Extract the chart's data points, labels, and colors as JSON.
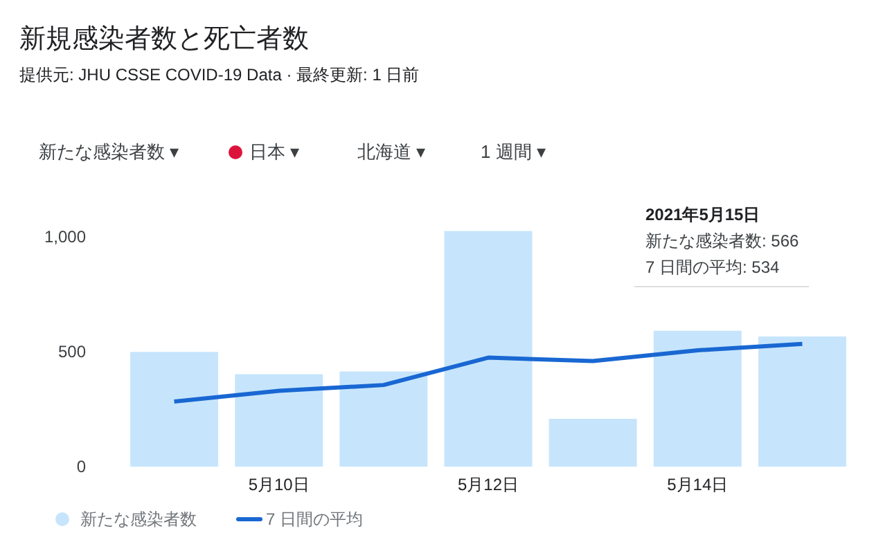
{
  "chart_data": {
    "type": "bar",
    "title": "新規感染者数と死亡者数",
    "subtitle": "提供元: JHU CSSE COVID-19 Data · 最終更新: 1 日前",
    "categories": [
      null,
      "5月10日",
      null,
      "5月12日",
      null,
      "5月14日",
      null
    ],
    "series": [
      {
        "name": "新たな感染者数",
        "color": "#c6e5fc",
        "values": [
          499,
          402,
          414,
          1025,
          208,
          591,
          566
        ]
      },
      {
        "name": "7 日間の平均",
        "type": "line",
        "color": "#1967d2",
        "values": [
          283,
          330,
          355,
          474,
          459,
          506,
          534
        ]
      }
    ],
    "ylim": [
      0,
      1030
    ],
    "yticks": [
      0,
      500,
      {
        "value": 1000,
        "label": "1,000"
      }
    ],
    "grid": false,
    "legend": "bottom",
    "marker": "none",
    "line_style": "solid",
    "annotations": [
      "新たな感染者数 ▾",
      "日本 ▾",
      "北海道 ▾",
      "1 週間 ▾",
      "2021年5月15日",
      "新たな感染者数: 566",
      "7 日間の平均: 534"
    ]
  }
}
